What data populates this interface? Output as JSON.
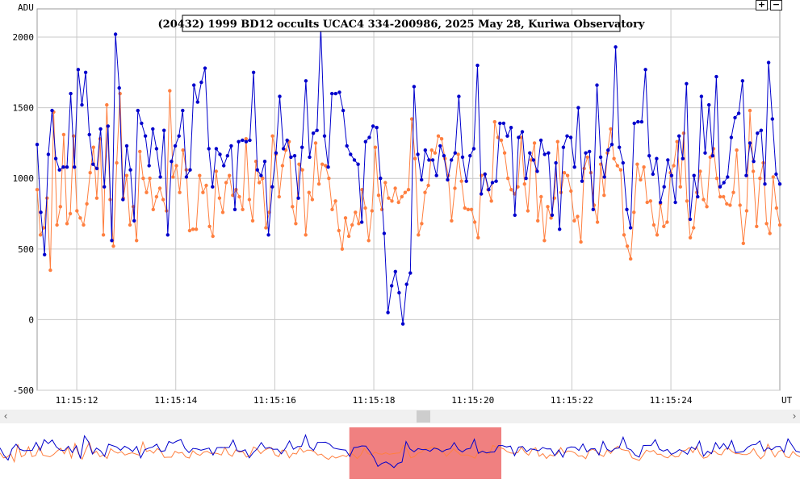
{
  "toolbar": {
    "zoom_in_label": "+",
    "zoom_out_label": "−"
  },
  "scrollbar": {
    "left_arrow": "‹",
    "right_arrow": "›"
  },
  "chart_data": {
    "type": "line",
    "title": "(20432) 1999 BD12 occults UCAC4 334-200986, 2025 May 28, Kuriwa Observatory",
    "ylabel": "ADU",
    "xlabel": "UT",
    "ylim": [
      -500,
      2200
    ],
    "yticks": [
      -500,
      0,
      500,
      1000,
      1500,
      2000
    ],
    "xlim": [
      0,
      15
    ],
    "xticks": [
      {
        "value": 0.8,
        "label": "11:15:12"
      },
      {
        "value": 2.8,
        "label": "11:15:14"
      },
      {
        "value": 4.8,
        "label": "11:15:16"
      },
      {
        "value": 6.8,
        "label": "11:15:18"
      },
      {
        "value": 8.8,
        "label": "11:15:20"
      },
      {
        "value": 10.8,
        "label": "11:15:22"
      },
      {
        "value": 12.8,
        "label": "11:15:24"
      }
    ],
    "grid": true,
    "series": [
      {
        "color": "#0000cc",
        "values": [
          1240,
          760,
          460,
          1170,
          1480,
          1140,
          1060,
          1080,
          1080,
          1600,
          1080,
          1770,
          1520,
          1750,
          1310,
          1100,
          1070,
          1350,
          940,
          1370,
          560,
          2020,
          1640,
          850,
          1230,
          1060,
          700,
          1480,
          1390,
          1300,
          1090,
          1350,
          1210,
          1010,
          1340,
          600,
          1120,
          1230,
          1300,
          1480,
          1010,
          1060,
          1660,
          1540,
          1680,
          1780,
          1210,
          940,
          1210,
          1170,
          1090,
          1160,
          1230,
          780,
          1260,
          1270,
          1260,
          1270,
          1750,
          1060,
          1020,
          1120,
          600,
          940,
          1180,
          1580,
          1210,
          1270,
          1150,
          1160,
          860,
          1220,
          1690,
          1150,
          1320,
          1340,
          2070,
          1300,
          1080,
          1600,
          1600,
          1610,
          1480,
          1230,
          1170,
          1130,
          1100,
          690,
          1260,
          1290,
          1370,
          1360,
          1000,
          610,
          50,
          240,
          340,
          190,
          -30,
          250,
          330,
          1650,
          1170,
          990,
          1200,
          1130,
          1130,
          1020,
          1230,
          1160,
          990,
          1130,
          1180,
          1580,
          1150,
          980,
          1160,
          1210,
          1800,
          890,
          1030,
          920,
          970,
          980,
          1390,
          1390,
          1300,
          1360,
          740,
          1290,
          1330,
          1000,
          1180,
          1130,
          1050,
          1270,
          1170,
          1180,
          740,
          1110,
          640,
          1220,
          1300,
          1290,
          1080,
          1500,
          980,
          1180,
          1190,
          780,
          1660,
          1150,
          1010,
          1200,
          1240,
          1930,
          1220,
          1110,
          780,
          650,
          1390,
          1400,
          1400,
          1770,
          1160,
          1030,
          1140,
          830,
          940,
          1130,
          1020,
          830,
          1300,
          1140,
          1670,
          710,
          1020,
          870,
          1580,
          1180,
          1520,
          1160,
          1720,
          940,
          970,
          1010,
          1290,
          1430,
          1460,
          1690,
          1020,
          1250,
          1120,
          1320,
          1340,
          960,
          1820,
          1420,
          1030,
          960
        ]
      },
      {
        "color": "#ff7f3f",
        "values": [
          920,
          600,
          650,
          860,
          350,
          1470,
          670,
          800,
          1310,
          680,
          750,
          1300,
          770,
          720,
          670,
          820,
          1040,
          1220,
          860,
          1280,
          600,
          1520,
          850,
          520,
          1110,
          1600,
          860,
          1020,
          670,
          800,
          560,
          1190,
          1000,
          900,
          1000,
          780,
          870,
          930,
          850,
          770,
          1620,
          1010,
          1090,
          900,
          1200,
          1060,
          630,
          640,
          640,
          1020,
          900,
          950,
          660,
          590,
          1050,
          860,
          760,
          970,
          1020,
          880,
          920,
          870,
          780,
          1280,
          850,
          700,
          1120,
          970,
          1000,
          650,
          760,
          1300,
          1170,
          870,
          1090,
          1200,
          1260,
          800,
          680,
          1100,
          1060,
          600,
          900,
          850,
          1250,
          960,
          1100,
          1090,
          1000,
          780,
          840,
          630,
          500,
          720,
          590,
          670,
          760,
          680,
          920,
          790,
          560,
          770,
          1220,
          880,
          780,
          970,
          860,
          840,
          930,
          830,
          870,
          900,
          920,
          1420,
          1140,
          600,
          680,
          900,
          950,
          1200,
          1180,
          1300,
          1280,
          1140,
          1020,
          700,
          930,
          1170,
          980,
          790,
          780,
          780,
          690,
          580,
          1020,
          1030,
          920,
          840,
          1400,
          1290,
          1270,
          1180,
          1000,
          920,
          890,
          940,
          1290,
          960,
          770,
          1130,
          1250,
          700,
          870,
          560,
          800,
          720,
          860,
          1260,
          900,
          1040,
          1020,
          910,
          700,
          730,
          550,
          1070,
          1150,
          1040,
          810,
          690,
          1100,
          880,
          1180,
          1350,
          1140,
          1090,
          1060,
          600,
          520,
          430,
          760,
          1100,
          990,
          1080,
          830,
          840,
          670,
          600,
          820,
          660,
          690,
          1040,
          1090,
          1260,
          940,
          1320,
          840,
          580,
          650,
          900,
          1050,
          850,
          800,
          1150,
          1210,
          1000,
          870,
          870,
          820,
          810,
          900,
          1200,
          810,
          540,
          770,
          1480,
          1050,
          660,
          1000,
          1110,
          680,
          610,
          1010,
          790,
          670
        ]
      }
    ],
    "overview": {
      "highlight_start": 6.55,
      "highlight_end": 9.4,
      "highlight_color": "#f08080"
    }
  }
}
